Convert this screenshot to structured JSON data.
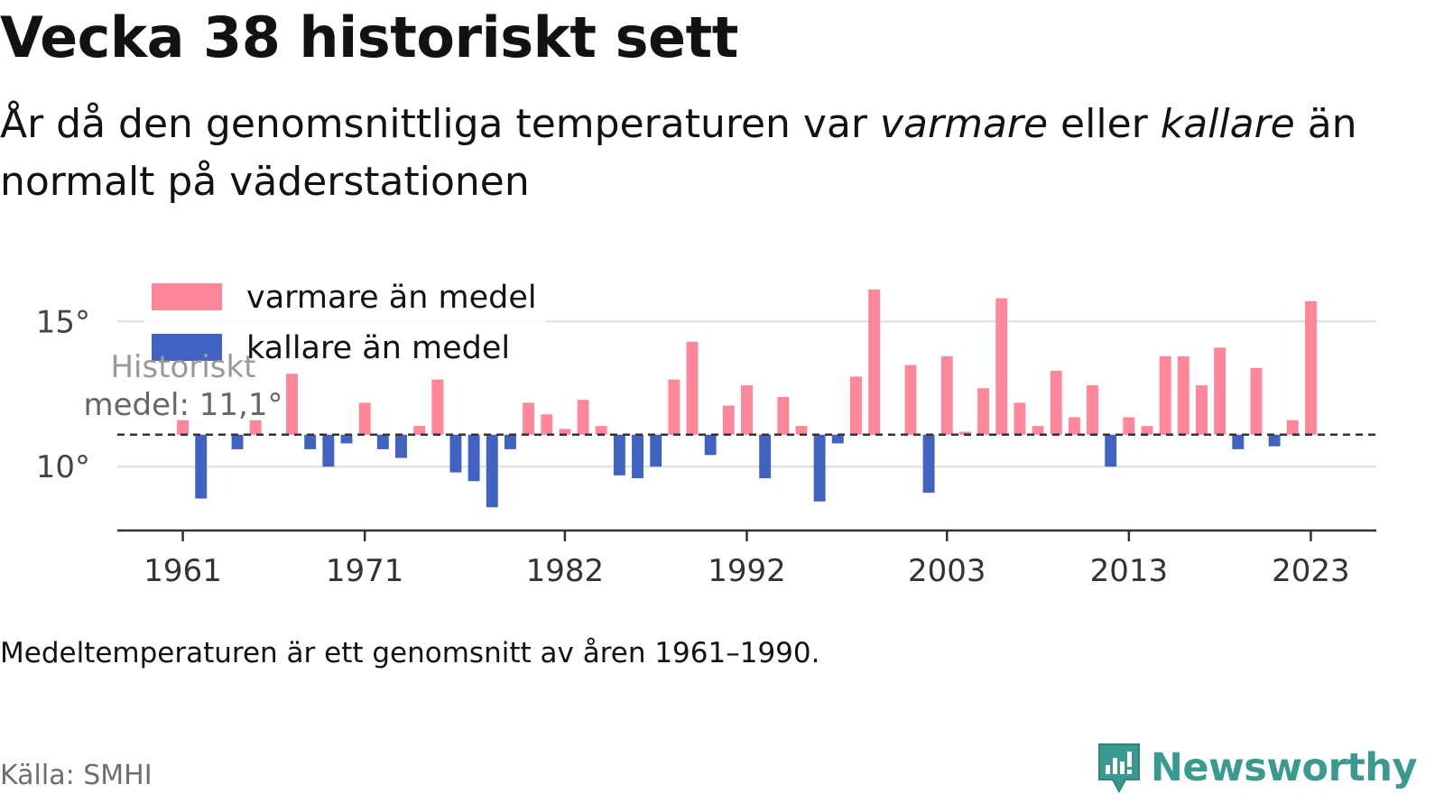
{
  "header": {
    "title": "Vecka 38 historiskt sett",
    "subtitle_pre": "År då den genomsnittliga temperaturen var ",
    "subtitle_warm": "varmare",
    "subtitle_mid": " eller ",
    "subtitle_cold": "kallare",
    "subtitle_post": " än normalt på väderstationen"
  },
  "footer": {
    "note": "Medeltemperaturen är ett genomsnitt av åren 1961–1990.",
    "source": "Källa: SMHI",
    "brand": "Newsworthy"
  },
  "chart_data": {
    "type": "bar",
    "baseline": 11.1,
    "baseline_label": [
      "Historiskt",
      "medel: 11,1°"
    ],
    "ylim": [
      7.8,
      16.5
    ],
    "yticks": [
      10,
      15
    ],
    "ytick_labels": [
      "10°",
      "15°"
    ],
    "xlim": [
      1957.4,
      2026.6
    ],
    "xticks": [
      1961,
      1971,
      1982,
      1992,
      2003,
      2013,
      2023
    ],
    "xtick_labels": [
      "1961",
      "1971",
      "1982",
      "1992",
      "2003",
      "2013",
      "2023"
    ],
    "legend": [
      {
        "label": "varmare än medel",
        "color": "#ff8799"
      },
      {
        "label": "kallare än medel",
        "color": "#4162c0"
      }
    ],
    "colors": {
      "above": "#ff8799",
      "below": "#4162c0"
    },
    "years": [
      1961,
      1962,
      1963,
      1964,
      1965,
      1966,
      1967,
      1968,
      1969,
      1970,
      1971,
      1972,
      1973,
      1974,
      1975,
      1976,
      1977,
      1978,
      1979,
      1980,
      1981,
      1982,
      1983,
      1984,
      1985,
      1986,
      1987,
      1988,
      1989,
      1990,
      1991,
      1992,
      1993,
      1994,
      1995,
      1996,
      1997,
      1998,
      1999,
      2000,
      2001,
      2002,
      2003,
      2004,
      2005,
      2006,
      2007,
      2008,
      2009,
      2010,
      2011,
      2012,
      2013,
      2014,
      2015,
      2016,
      2017,
      2018,
      2019,
      2020,
      2021,
      2022,
      2023
    ],
    "values": [
      11.6,
      8.9,
      11.1,
      10.6,
      11.6,
      11.1,
      13.2,
      10.6,
      10.0,
      10.8,
      12.2,
      10.6,
      10.3,
      11.4,
      13.0,
      9.8,
      9.5,
      8.6,
      10.6,
      12.2,
      11.8,
      11.3,
      12.3,
      11.4,
      9.7,
      9.6,
      10.0,
      13.0,
      14.3,
      10.4,
      12.1,
      12.8,
      9.6,
      12.4,
      11.4,
      8.8,
      10.8,
      13.1,
      16.1,
      11.1,
      13.5,
      9.1,
      13.8,
      11.2,
      12.7,
      15.8,
      12.2,
      11.4,
      13.3,
      11.7,
      12.8,
      10.0,
      11.7,
      11.4,
      13.8,
      13.8,
      12.8,
      14.1,
      10.6,
      13.4,
      10.7,
      11.6,
      15.7
    ]
  }
}
